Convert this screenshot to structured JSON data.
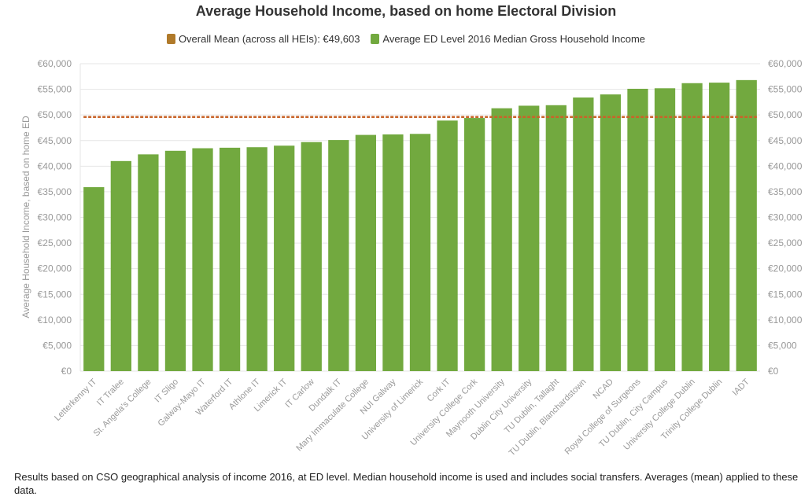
{
  "chart_data": {
    "type": "bar",
    "title": "Average Household Income, based on home Electoral Division",
    "ylabel": "Average Household Income, based on home ED",
    "xlabel": "",
    "ylim": [
      0,
      60000
    ],
    "y_ticks": [
      "€0",
      "€5,000",
      "€10,000",
      "€15,000",
      "€20,000",
      "€25,000",
      "€30,000",
      "€35,000",
      "€40,000",
      "€45,000",
      "€50,000",
      "€55,000",
      "€60,000"
    ],
    "categories": [
      "Letterkenny IT",
      "IT Tralee",
      "St. Angela's College",
      "IT Sligo",
      "Galway-Mayo IT",
      "Waterford IT",
      "Athlone IT",
      "Limerick IT",
      "IT Carlow",
      "Dundalk IT",
      "Mary Immaculate College",
      "NUI Galway",
      "University of Limerick",
      "Cork IT",
      "University College Cork",
      "Maynooth University",
      "Dublin City University",
      "TU Dublin, Tallaght",
      "TU Dublin, Blanchardstown",
      "NCAD",
      "Royal College of Surgeons",
      "TU Dublin, City Campus",
      "University College Dublin",
      "Trinity College Dublin",
      "IADT"
    ],
    "series": [
      {
        "name": "Average ED Level 2016 Median Gross Household Income",
        "color": "#72a93f",
        "values": [
          35900,
          41000,
          42300,
          43000,
          43500,
          43600,
          43700,
          44000,
          44700,
          45100,
          46100,
          46200,
          46300,
          48900,
          49400,
          51300,
          51800,
          51900,
          53400,
          54000,
          55100,
          55200,
          56200,
          56300,
          56800
        ]
      }
    ],
    "reference_line": {
      "name": "Overall Mean (across all HEIs): €49,603",
      "value": 49603,
      "color": "#b07a2a",
      "line_color": "#c8642a",
      "style": "dashed"
    },
    "legend_position": "top-center",
    "grid": true
  },
  "footnote": "Results based on CSO geographical analysis of income 2016, at ED level. Median household income is used and includes social transfers. Averages (mean) applied to these data."
}
